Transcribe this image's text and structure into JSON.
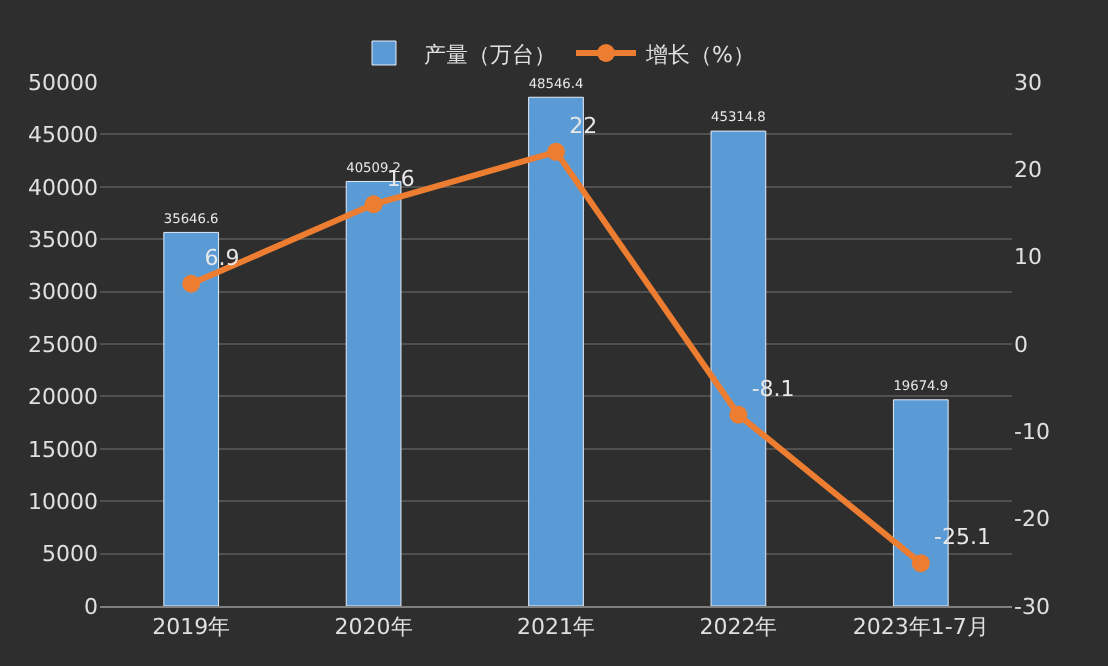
{
  "chart_data": {
    "type": "bar",
    "categories": [
      "2019年",
      "2020年",
      "2021年",
      "2022年",
      "2023年1-7月"
    ],
    "series": [
      {
        "name": "产量（万台）",
        "color": "#5b9bd5",
        "values": [
          35646.6,
          40509.2,
          48546.4,
          45314.8,
          19674.9
        ]
      },
      {
        "name": "增长（%）",
        "type": "line",
        "axis": "y2",
        "color": "#ed7d31",
        "marker": "circle",
        "values": [
          6.9,
          16,
          22,
          -8.1,
          -25.1
        ]
      }
    ],
    "ylim": [
      0,
      50000
    ],
    "yticks": [
      0,
      5000,
      10000,
      15000,
      20000,
      25000,
      30000,
      35000,
      40000,
      45000,
      50000
    ],
    "y2lim": [
      -30,
      30
    ],
    "y2ticks": [
      -30,
      -20,
      -10,
      0,
      10,
      20,
      30
    ],
    "grid": "y",
    "legend": "top",
    "data_labels": true
  }
}
